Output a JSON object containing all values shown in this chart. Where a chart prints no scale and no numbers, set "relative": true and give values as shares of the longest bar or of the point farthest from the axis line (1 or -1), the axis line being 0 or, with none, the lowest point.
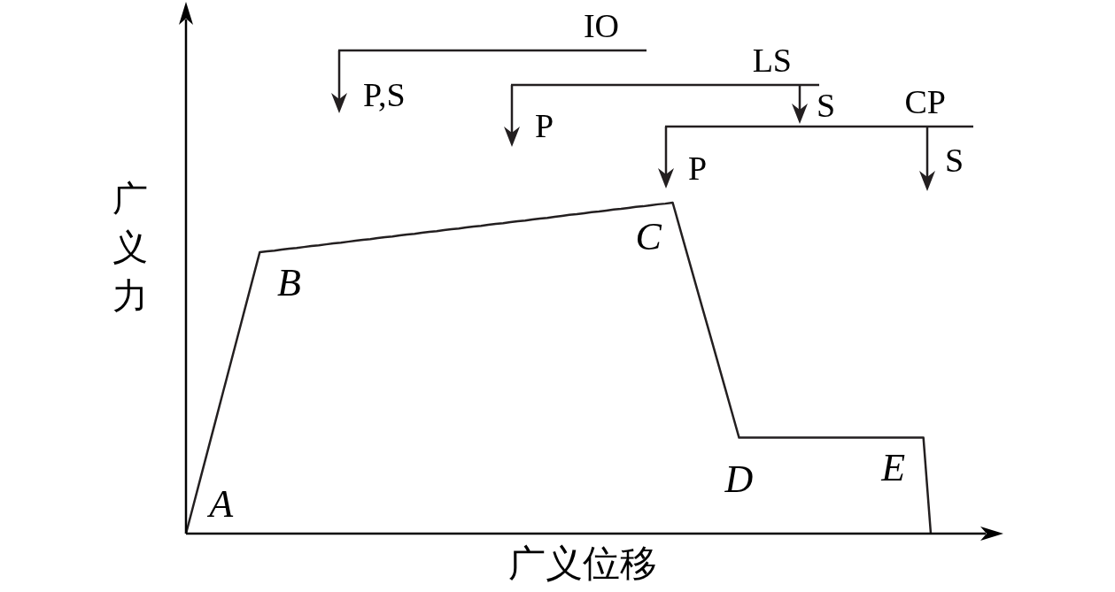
{
  "chart_data": {
    "type": "line",
    "xlabel": "广义位移",
    "ylabel": "广义力",
    "relative": true,
    "color": "#231f20",
    "categories": [
      null,
      null,
      null,
      null,
      null,
      null,
      null,
      null,
      null,
      null,
      null,
      null,
      null,
      null,
      null,
      null,
      null,
      null,
      null,
      null,
      null,
      null,
      null,
      null,
      null,
      null,
      null,
      null,
      null,
      null,
      null,
      null,
      null,
      null,
      null,
      null,
      null,
      null,
      null,
      null,
      null,
      null,
      null,
      null,
      null,
      null,
      null,
      null,
      null,
      null,
      null,
      null,
      null,
      null,
      null,
      null,
      null,
      null,
      null,
      null,
      null,
      null,
      null,
      null,
      null,
      null,
      null,
      null,
      null,
      null,
      null,
      null,
      null,
      null,
      null,
      null,
      null,
      null,
      null,
      null,
      null,
      null,
      null,
      null,
      null,
      null,
      null,
      null,
      null,
      null,
      null,
      null,
      null,
      null,
      null,
      null,
      null,
      null,
      null,
      null,
      null,
      null
    ],
    "values": [
      0,
      0.085,
      0.17,
      0.255,
      0.34,
      0.425,
      0.51,
      0.595,
      0.68,
      0.765,
      0.85,
      0.853,
      0.855,
      0.858,
      0.861,
      0.863,
      0.866,
      0.869,
      0.871,
      0.874,
      0.877,
      0.879,
      0.882,
      0.885,
      0.888,
      0.89,
      0.893,
      0.896,
      0.898,
      0.901,
      0.904,
      0.906,
      0.909,
      0.912,
      0.914,
      0.917,
      0.92,
      0.922,
      0.925,
      0.928,
      0.93,
      0.933,
      0.936,
      0.938,
      0.941,
      0.944,
      0.946,
      0.949,
      0.952,
      0.954,
      0.957,
      0.96,
      0.963,
      0.965,
      0.968,
      0.971,
      0.973,
      0.976,
      0.979,
      0.981,
      0.984,
      0.987,
      0.989,
      0.992,
      0.995,
      0.997,
      1,
      0.921,
      0.842,
      0.763,
      0.684,
      0.606,
      0.527,
      0.448,
      0.369,
      0.29,
      0.29,
      0.29,
      0.29,
      0.29,
      0.29,
      0.29,
      0.29,
      0.29,
      0.29,
      0.29,
      0.29,
      0.29,
      0.29,
      0.29,
      0.29,
      0.29,
      0.29,
      0.29,
      0.29,
      0.29,
      0.29,
      0.29,
      0.29,
      0.29,
      0.29,
      0
    ],
    "annotations": [
      "A",
      "B",
      "C",
      "D",
      "E",
      "IO",
      "P,S",
      "LS",
      "P",
      "S",
      "CP",
      "P",
      "S"
    ]
  }
}
